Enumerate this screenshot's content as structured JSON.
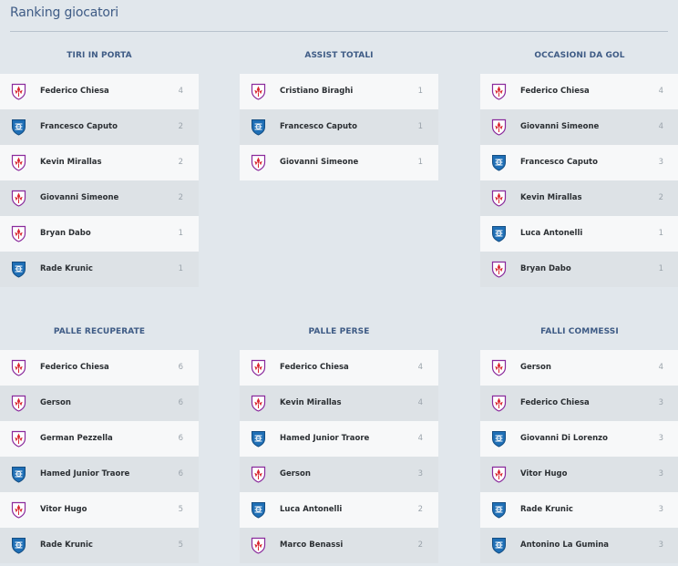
{
  "page_title": "Ranking giocatori",
  "team_icons": {
    "fiorentina": "fiorentina-crest-icon",
    "empoli": "empoli-crest-icon"
  },
  "colors": {
    "title": "#3e5b85",
    "fiorentina": "#8a2a9c",
    "empoli": "#1f6fb6"
  },
  "panels": [
    {
      "title": "TIRI IN PORTA",
      "rows": [
        {
          "team": "fiorentina",
          "name": "Federico Chiesa",
          "value": "4"
        },
        {
          "team": "empoli",
          "name": "Francesco Caputo",
          "value": "2"
        },
        {
          "team": "fiorentina",
          "name": "Kevin Mirallas",
          "value": "2"
        },
        {
          "team": "fiorentina",
          "name": "Giovanni Simeone",
          "value": "2"
        },
        {
          "team": "fiorentina",
          "name": "Bryan Dabo",
          "value": "1"
        },
        {
          "team": "empoli",
          "name": "Rade Krunic",
          "value": "1"
        }
      ]
    },
    {
      "title": "ASSIST TOTALI",
      "rows": [
        {
          "team": "fiorentina",
          "name": "Cristiano Biraghi",
          "value": "1"
        },
        {
          "team": "empoli",
          "name": "Francesco Caputo",
          "value": "1"
        },
        {
          "team": "fiorentina",
          "name": "Giovanni Simeone",
          "value": "1"
        }
      ]
    },
    {
      "title": "OCCASIONI DA GOL",
      "rows": [
        {
          "team": "fiorentina",
          "name": "Federico Chiesa",
          "value": "4"
        },
        {
          "team": "fiorentina",
          "name": "Giovanni Simeone",
          "value": "4"
        },
        {
          "team": "empoli",
          "name": "Francesco Caputo",
          "value": "3"
        },
        {
          "team": "fiorentina",
          "name": "Kevin Mirallas",
          "value": "2"
        },
        {
          "team": "empoli",
          "name": "Luca Antonelli",
          "value": "1"
        },
        {
          "team": "fiorentina",
          "name": "Bryan Dabo",
          "value": "1"
        }
      ]
    },
    {
      "title": "PALLE RECUPERATE",
      "rows": [
        {
          "team": "fiorentina",
          "name": "Federico Chiesa",
          "value": "6"
        },
        {
          "team": "fiorentina",
          "name": "Gerson",
          "value": "6"
        },
        {
          "team": "fiorentina",
          "name": "German Pezzella",
          "value": "6"
        },
        {
          "team": "empoli",
          "name": "Hamed Junior Traore",
          "value": "6"
        },
        {
          "team": "fiorentina",
          "name": "Vitor Hugo",
          "value": "5"
        },
        {
          "team": "empoli",
          "name": "Rade Krunic",
          "value": "5"
        }
      ]
    },
    {
      "title": "PALLE PERSE",
      "rows": [
        {
          "team": "fiorentina",
          "name": "Federico Chiesa",
          "value": "4"
        },
        {
          "team": "fiorentina",
          "name": "Kevin Mirallas",
          "value": "4"
        },
        {
          "team": "empoli",
          "name": "Hamed Junior Traore",
          "value": "4"
        },
        {
          "team": "fiorentina",
          "name": "Gerson",
          "value": "3"
        },
        {
          "team": "empoli",
          "name": "Luca Antonelli",
          "value": "2"
        },
        {
          "team": "fiorentina",
          "name": "Marco Benassi",
          "value": "2"
        }
      ]
    },
    {
      "title": "FALLI COMMESSI",
      "rows": [
        {
          "team": "fiorentina",
          "name": "Gerson",
          "value": "4"
        },
        {
          "team": "fiorentina",
          "name": "Federico Chiesa",
          "value": "3"
        },
        {
          "team": "empoli",
          "name": "Giovanni Di Lorenzo",
          "value": "3"
        },
        {
          "team": "fiorentina",
          "name": "Vitor Hugo",
          "value": "3"
        },
        {
          "team": "empoli",
          "name": "Rade Krunic",
          "value": "3"
        },
        {
          "team": "empoli",
          "name": "Antonino La Gumina",
          "value": "3"
        }
      ]
    }
  ]
}
